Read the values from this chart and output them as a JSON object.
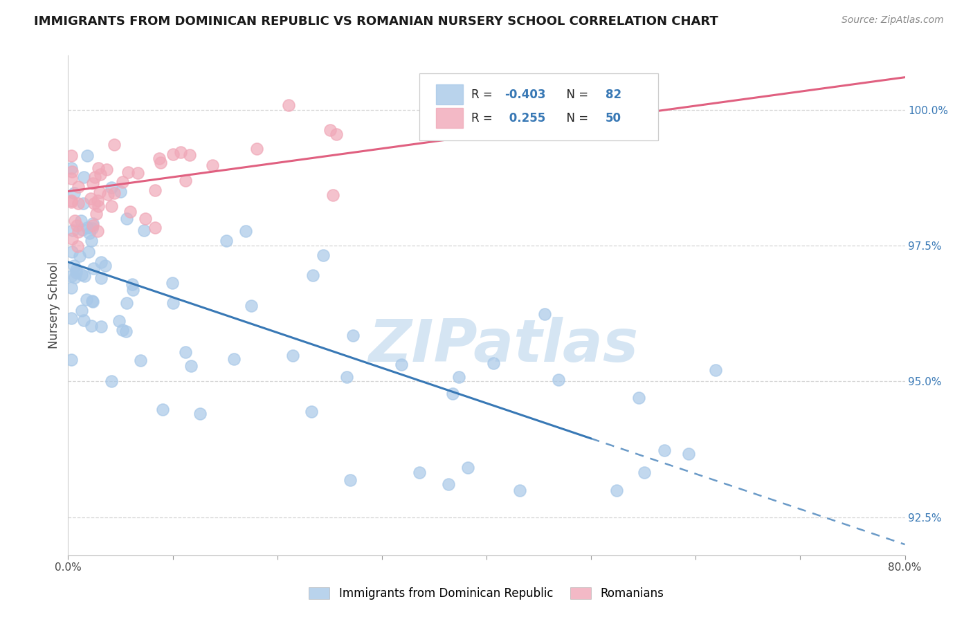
{
  "title": "IMMIGRANTS FROM DOMINICAN REPUBLIC VS ROMANIAN NURSERY SCHOOL CORRELATION CHART",
  "source": "Source: ZipAtlas.com",
  "ylabel": "Nursery School",
  "y_ticks": [
    92.5,
    95.0,
    97.5,
    100.0
  ],
  "y_tick_labels": [
    "92.5%",
    "95.0%",
    "97.5%",
    "100.0%"
  ],
  "xmin": 0.0,
  "xmax": 80.0,
  "ymin": 91.8,
  "ymax": 101.0,
  "r_blue": -0.403,
  "n_blue": 82,
  "r_pink": 0.255,
  "n_pink": 50,
  "blue_color": "#a8c8e8",
  "pink_color": "#f0a8b8",
  "blue_line_color": "#3878b5",
  "pink_line_color": "#e06080",
  "blue_tick_color": "#3878b5",
  "watermark_color": "#c8ddf0",
  "legend_blue_label": "Immigrants from Dominican Republic",
  "legend_pink_label": "Romanians",
  "blue_trend_x0": 0.0,
  "blue_trend_y0": 97.2,
  "blue_trend_x1": 80.0,
  "blue_trend_y1": 92.0,
  "blue_solid_end_x": 50.0,
  "pink_trend_x0": 0.0,
  "pink_trend_y0": 98.5,
  "pink_trend_x1": 80.0,
  "pink_trend_y1": 100.6
}
